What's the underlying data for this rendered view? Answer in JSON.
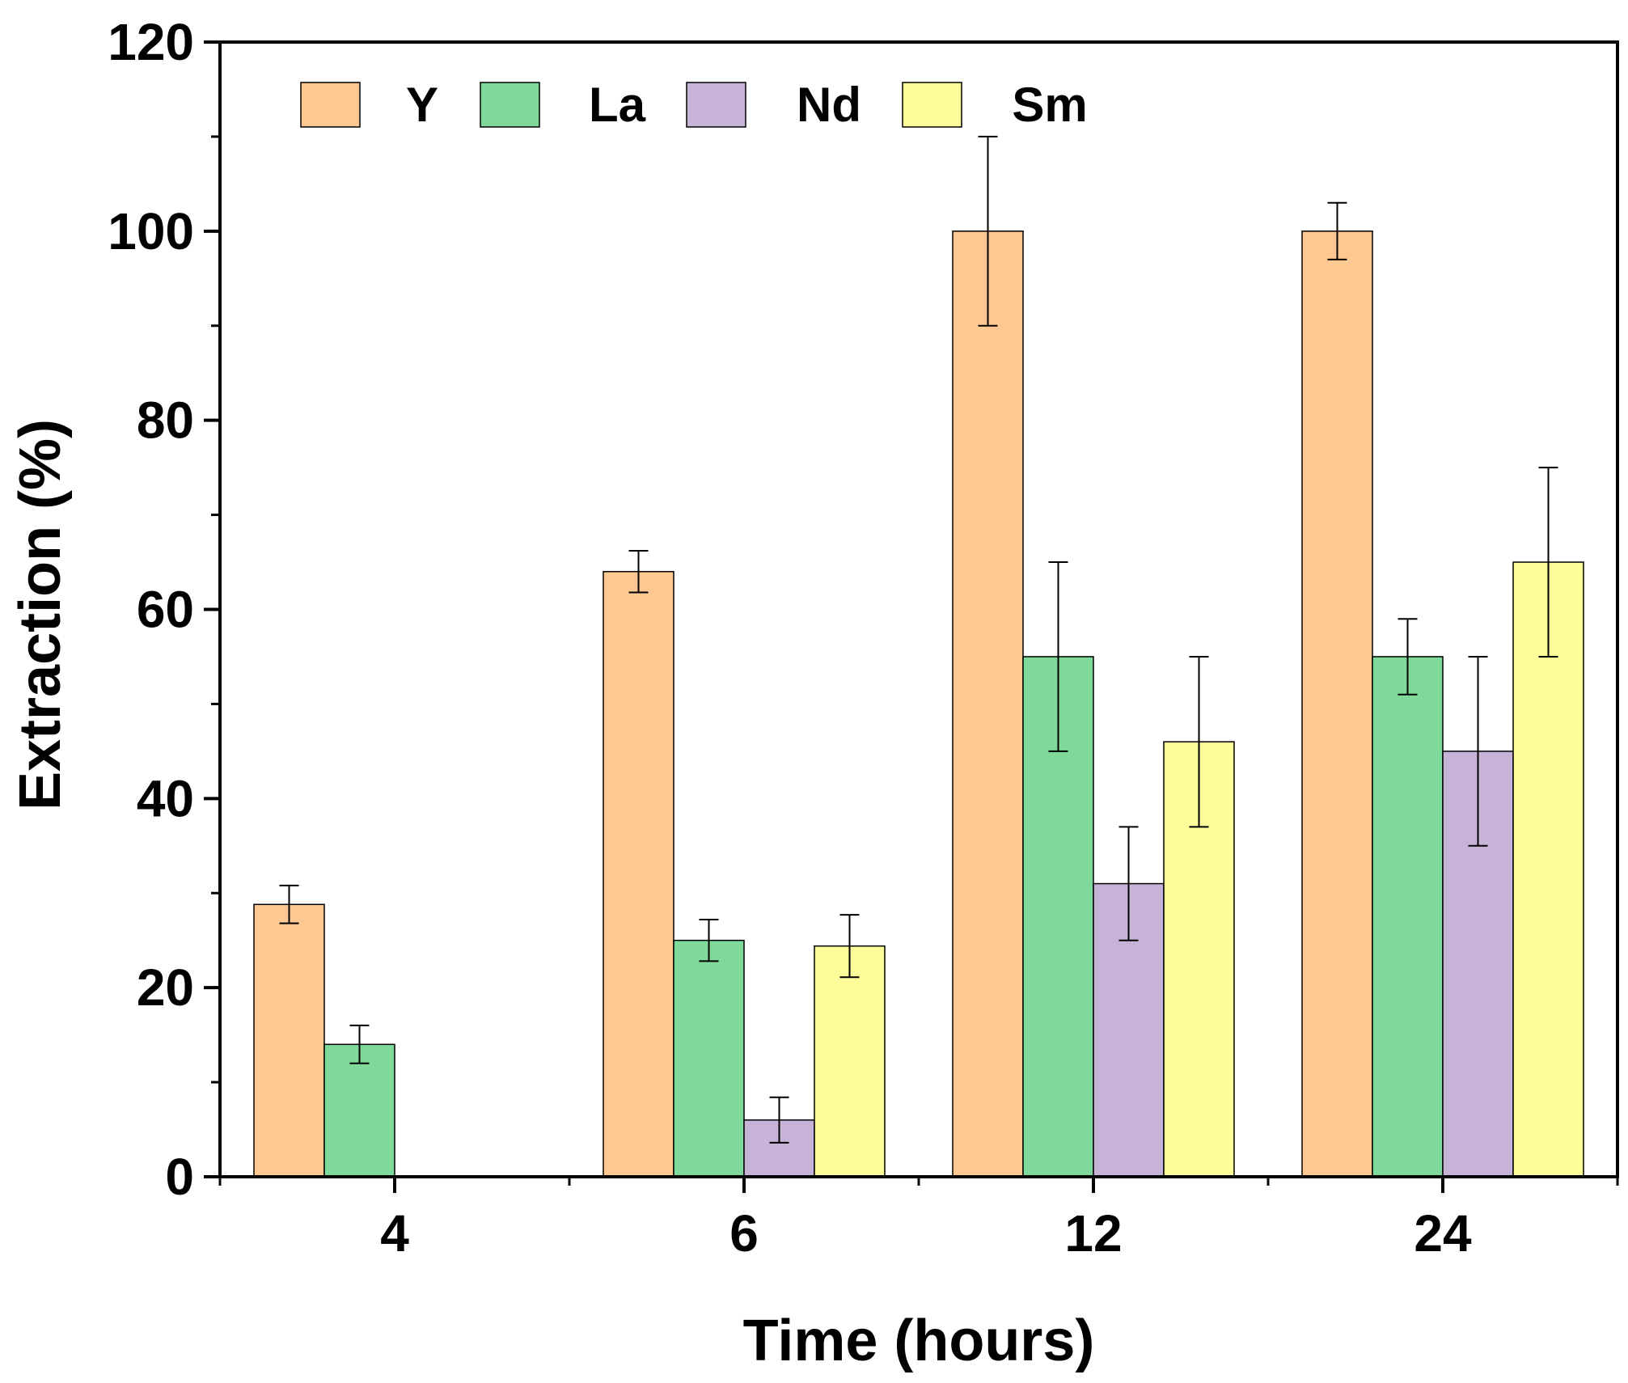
{
  "chart_data": {
    "type": "bar",
    "title": "",
    "xlabel": "Time (hours)",
    "ylabel": "Extraction (%)",
    "categories": [
      "4",
      "6",
      "12",
      "24"
    ],
    "ylim": [
      0,
      120
    ],
    "yticks": [
      "0",
      "20",
      "40",
      "60",
      "80",
      "100",
      "120"
    ],
    "legend_position": "top-left",
    "grid": false,
    "series": [
      {
        "name": "Y",
        "color": "#FDC891",
        "values": [
          28.8,
          64,
          100,
          100
        ],
        "errors": [
          2,
          2.2,
          10,
          3
        ]
      },
      {
        "name": "La",
        "color": "#7ED99A",
        "values": [
          14,
          25,
          55,
          55
        ],
        "errors": [
          2,
          2.2,
          10,
          4
        ]
      },
      {
        "name": "Nd",
        "color": "#C8B3D8",
        "values": [
          0,
          6,
          31,
          45
        ],
        "errors": [
          0,
          2.4,
          6,
          10
        ]
      },
      {
        "name": "Sm",
        "color": "#FDFD99",
        "values": [
          0,
          24.4,
          46,
          65
        ],
        "errors": [
          0,
          3.3,
          9,
          10
        ]
      }
    ]
  }
}
